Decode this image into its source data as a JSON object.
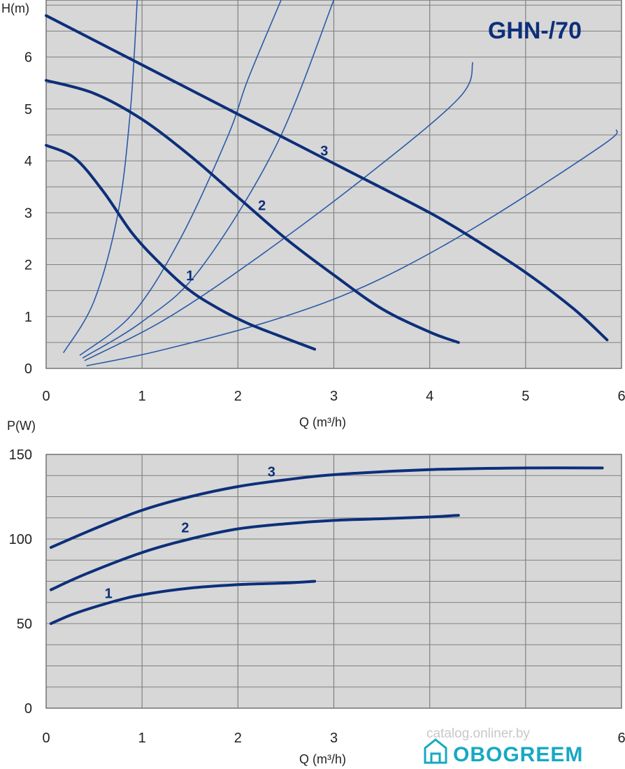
{
  "colors": {
    "plot_bg": "#d7d7d7",
    "grid": "#808080",
    "curve": "#0d2f7a",
    "thin_curve": "#2a5aa8",
    "logo": "#17a8c4"
  },
  "chart_data": [
    {
      "type": "line",
      "title": "GHN-/70",
      "xlabel": "Q (m³/h)",
      "ylabel": "H(m)",
      "xlim": [
        0,
        6
      ],
      "ylim": [
        0,
        7.1
      ],
      "xticks": [
        "0",
        "1",
        "2",
        "3",
        "4",
        "5",
        "6"
      ],
      "yticks": [
        "0",
        "1",
        "2",
        "3",
        "4",
        "5",
        "6"
      ],
      "grid": true,
      "series": [
        {
          "name": "1",
          "points": [
            [
              0,
              4.3
            ],
            [
              0.3,
              4.05
            ],
            [
              0.6,
              3.4
            ],
            [
              0.9,
              2.6
            ],
            [
              1.2,
              2.0
            ],
            [
              1.5,
              1.5
            ],
            [
              1.8,
              1.15
            ],
            [
              2.1,
              0.87
            ],
            [
              2.4,
              0.65
            ],
            [
              2.8,
              0.37
            ]
          ]
        },
        {
          "name": "2",
          "points": [
            [
              0,
              5.55
            ],
            [
              0.5,
              5.3
            ],
            [
              1.0,
              4.8
            ],
            [
              1.5,
              4.1
            ],
            [
              2.0,
              3.3
            ],
            [
              2.5,
              2.5
            ],
            [
              3.0,
              1.8
            ],
            [
              3.5,
              1.15
            ],
            [
              4.0,
              0.7
            ],
            [
              4.3,
              0.5
            ]
          ]
        },
        {
          "name": "3",
          "points": [
            [
              0,
              6.8
            ],
            [
              1.0,
              5.85
            ],
            [
              2.0,
              4.9
            ],
            [
              3.0,
              3.95
            ],
            [
              4.0,
              3.0
            ],
            [
              4.5,
              2.45
            ],
            [
              5.0,
              1.85
            ],
            [
              5.5,
              1.15
            ],
            [
              5.85,
              0.55
            ]
          ]
        }
      ],
      "system_curves": [
        {
          "points": [
            [
              0.18,
              0.3
            ],
            [
              0.5,
              1.3
            ],
            [
              0.75,
              3.0
            ],
            [
              0.88,
              5.0
            ],
            [
              0.95,
              7.1
            ]
          ]
        },
        {
          "points": [
            [
              0.35,
              0.25
            ],
            [
              0.9,
              1.05
            ],
            [
              1.4,
              2.5
            ],
            [
              1.9,
              4.5
            ],
            [
              2.1,
              5.55
            ],
            [
              2.45,
              7.1
            ]
          ]
        },
        {
          "points": [
            [
              0.38,
              0.2
            ],
            [
              1.0,
              0.9
            ],
            [
              1.6,
              1.9
            ],
            [
              2.4,
              4.3
            ],
            [
              3.0,
              7.1
            ]
          ]
        },
        {
          "points": [
            [
              0.4,
              0.15
            ],
            [
              1.2,
              0.9
            ],
            [
              2.1,
              2.0
            ],
            [
              3.3,
              3.65
            ],
            [
              4.3,
              5.2
            ],
            [
              4.45,
              5.9
            ]
          ]
        },
        {
          "points": [
            [
              0.42,
              0.05
            ],
            [
              1.2,
              0.35
            ],
            [
              2.4,
              0.95
            ],
            [
              3.4,
              1.65
            ],
            [
              4.5,
              2.75
            ],
            [
              5.8,
              4.3
            ],
            [
              5.95,
              4.6
            ]
          ]
        }
      ],
      "curve_labels": [
        {
          "text": "1",
          "x": 1.5,
          "y": 1.7
        },
        {
          "text": "2",
          "x": 2.25,
          "y": 3.05
        },
        {
          "text": "3",
          "x": 2.9,
          "y": 4.1
        }
      ]
    },
    {
      "type": "line",
      "title": "",
      "xlabel": "Q (m³/h)",
      "ylabel": "P(W)",
      "xlim": [
        0,
        6
      ],
      "ylim": [
        0,
        150
      ],
      "xticks": [
        "0",
        "1",
        "2",
        "3",
        "",
        "",
        "6"
      ],
      "yticks": [
        "0",
        "50",
        "100",
        "150"
      ],
      "grid": true,
      "series": [
        {
          "name": "1",
          "points": [
            [
              0.05,
              50
            ],
            [
              0.3,
              56
            ],
            [
              0.7,
              63
            ],
            [
              1.0,
              67
            ],
            [
              1.5,
              71
            ],
            [
              2.0,
              73
            ],
            [
              2.5,
              74
            ],
            [
              2.8,
              75
            ]
          ]
        },
        {
          "name": "2",
          "points": [
            [
              0.05,
              70
            ],
            [
              0.4,
              79
            ],
            [
              1.0,
              92
            ],
            [
              1.5,
              100
            ],
            [
              2.0,
              106
            ],
            [
              2.5,
              109
            ],
            [
              3.0,
              111
            ],
            [
              3.5,
              112
            ],
            [
              4.0,
              113
            ],
            [
              4.3,
              114
            ]
          ]
        },
        {
          "name": "3",
          "points": [
            [
              0.05,
              95
            ],
            [
              0.5,
              106
            ],
            [
              1.0,
              117
            ],
            [
              1.5,
              125
            ],
            [
              2.0,
              131
            ],
            [
              2.5,
              135
            ],
            [
              3.0,
              138
            ],
            [
              4.0,
              141
            ],
            [
              5.0,
              142
            ],
            [
              5.8,
              142
            ]
          ]
        }
      ],
      "curve_labels": [
        {
          "text": "1",
          "x": 0.65,
          "y": 65
        },
        {
          "text": "2",
          "x": 1.45,
          "y": 104
        },
        {
          "text": "3",
          "x": 2.35,
          "y": 137
        }
      ]
    }
  ],
  "watermark": "catalog.onliner.by",
  "logo": {
    "text": "OBOGREEM",
    "icon": "house-icon"
  }
}
